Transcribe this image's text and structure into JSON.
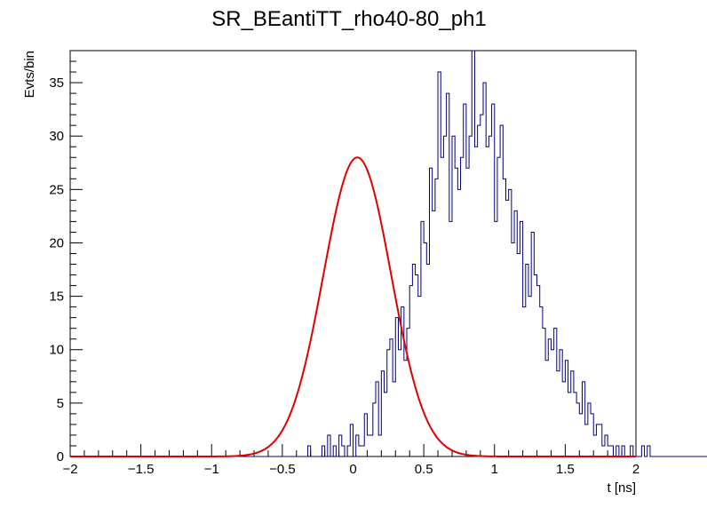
{
  "chart_data": {
    "type": "line",
    "title": "SR_BEantiTT_rho40-80_ph1",
    "xlabel": "t [ns]",
    "ylabel": "Evts/bin",
    "xlim": [
      -2,
      2
    ],
    "ylim": [
      0,
      38
    ],
    "x_ticks": [
      "−2",
      "−1.5",
      "−1",
      "−0.5",
      "0",
      "0.5",
      "1",
      "1.5",
      "2"
    ],
    "y_ticks": [
      "0",
      "5",
      "10",
      "15",
      "20",
      "25",
      "30",
      "35"
    ],
    "grid": false,
    "series": [
      {
        "kind": "histogram",
        "color": "#000080",
        "bin_low": -2.0,
        "bin_width": 0.02,
        "counts": [
          0,
          0,
          0,
          0,
          0,
          0,
          0,
          0,
          0,
          0,
          0,
          0,
          0,
          0,
          0,
          0,
          0,
          0,
          0,
          0,
          0,
          0,
          0,
          0,
          0,
          0,
          0,
          0,
          0,
          0,
          0,
          0,
          0,
          0,
          0,
          0,
          0,
          0,
          0,
          0,
          0,
          0,
          0,
          0,
          0,
          0,
          0,
          0,
          0,
          0,
          0,
          0,
          0,
          0,
          0,
          0,
          0,
          0,
          0,
          0,
          0,
          0,
          0,
          0,
          0,
          0,
          0,
          0,
          0,
          0,
          0,
          0,
          0,
          0,
          0,
          0,
          0,
          0,
          0,
          0,
          0,
          0,
          0,
          0,
          1,
          0,
          0,
          0,
          0,
          1,
          0,
          2,
          0,
          1,
          0,
          2,
          1,
          0,
          1,
          3,
          0,
          2,
          1,
          1,
          4,
          2,
          2,
          5,
          7,
          2,
          8,
          6,
          10,
          11,
          7,
          13,
          10,
          14,
          9,
          12,
          16,
          18,
          17,
          15,
          22,
          20,
          18,
          27,
          23,
          26,
          36,
          28,
          30,
          34,
          22,
          30,
          27,
          25,
          28,
          33,
          27,
          30,
          38,
          29,
          31,
          32,
          35,
          29,
          30,
          33,
          22,
          28,
          31,
          26,
          24,
          25,
          20,
          23,
          19,
          22,
          14,
          18,
          15,
          21,
          17,
          16,
          14,
          12,
          9,
          11,
          10,
          12,
          8,
          10,
          7,
          9,
          6,
          8,
          6,
          5,
          4,
          7,
          3,
          5,
          4,
          2,
          3,
          3,
          1,
          2,
          1,
          1,
          0,
          1,
          0,
          1,
          0,
          0,
          1,
          0,
          0,
          0,
          1,
          0,
          1,
          0,
          0,
          0,
          0,
          0,
          0,
          0,
          0,
          0,
          0,
          0,
          0,
          0,
          0,
          0,
          0,
          0,
          0,
          0,
          0,
          0,
          0,
          0,
          0,
          0,
          0,
          0,
          0,
          0,
          0,
          0,
          0,
          0,
          0,
          0,
          0,
          0,
          0,
          0,
          0,
          0,
          0,
          0,
          0,
          0,
          0,
          0,
          0,
          0,
          0,
          0,
          0,
          0,
          0,
          0,
          0,
          0,
          0,
          0,
          0,
          0,
          0,
          0,
          0,
          0,
          0,
          0,
          0,
          0,
          0,
          0,
          0,
          0,
          0,
          0,
          0,
          0,
          0,
          0,
          0,
          0,
          0,
          0,
          0,
          0,
          0,
          0,
          0,
          0,
          0,
          0,
          0,
          0,
          0,
          0
        ]
      },
      {
        "kind": "gaussian-fit",
        "color": "#e00000",
        "amplitude": 28,
        "mean": 0.03,
        "sigma": 0.24
      }
    ]
  }
}
